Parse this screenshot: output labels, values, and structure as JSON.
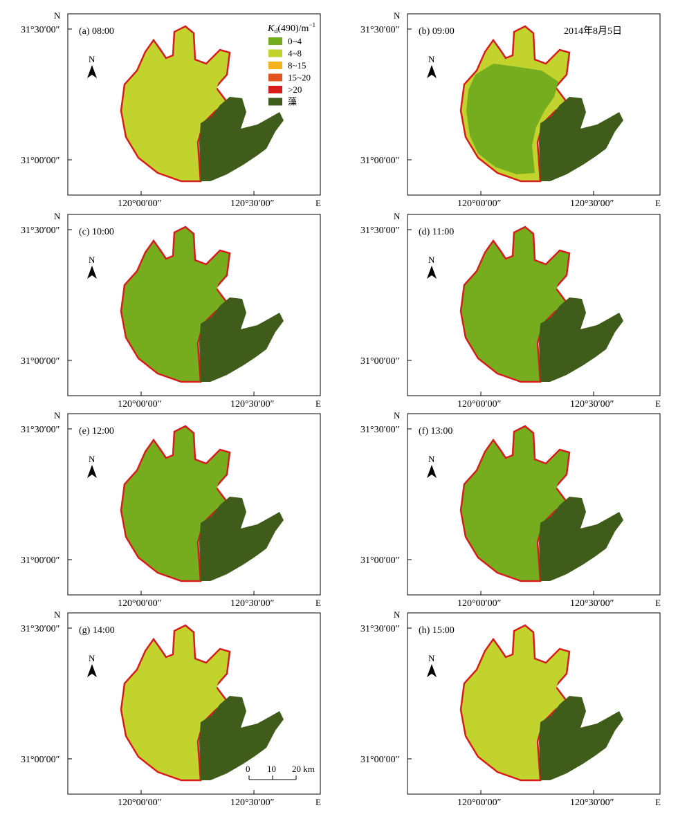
{
  "panels": [
    {
      "label": "(a) 08:00"
    },
    {
      "label": "(b) 09:00"
    },
    {
      "label": "(c) 10:00"
    },
    {
      "label": "(d) 11:00"
    },
    {
      "label": "(e) 12:00"
    },
    {
      "label": "(f) 13:00"
    },
    {
      "label": "(g) 14:00"
    },
    {
      "label": "(h) 15:00"
    }
  ],
  "axis": {
    "north_label": "N",
    "east_label": "E",
    "lat_top": "31°30′00″",
    "lat_bottom": "31°00′00″",
    "lon_left": "120°00′00″",
    "lon_right": "120°30′00″"
  },
  "north_arrow": "N",
  "date": "2014年8月5日",
  "legend": {
    "title_k": "K",
    "title_sub": "d",
    "title_rest": "(490)/m",
    "title_sup": "−1",
    "items": [
      {
        "label": "0~4",
        "color": "#76ad1f"
      },
      {
        "label": "4~8",
        "color": "#c2d32e"
      },
      {
        "label": "8~15",
        "color": "#f2b31c"
      },
      {
        "label": "15~20",
        "color": "#e4541c"
      },
      {
        "label": ">20",
        "color": "#d81c1c"
      },
      {
        "label": "藻",
        "color": "#3f5c1b"
      }
    ]
  },
  "scale_bar": {
    "ticks": [
      "0",
      "10",
      "20 km"
    ]
  }
}
